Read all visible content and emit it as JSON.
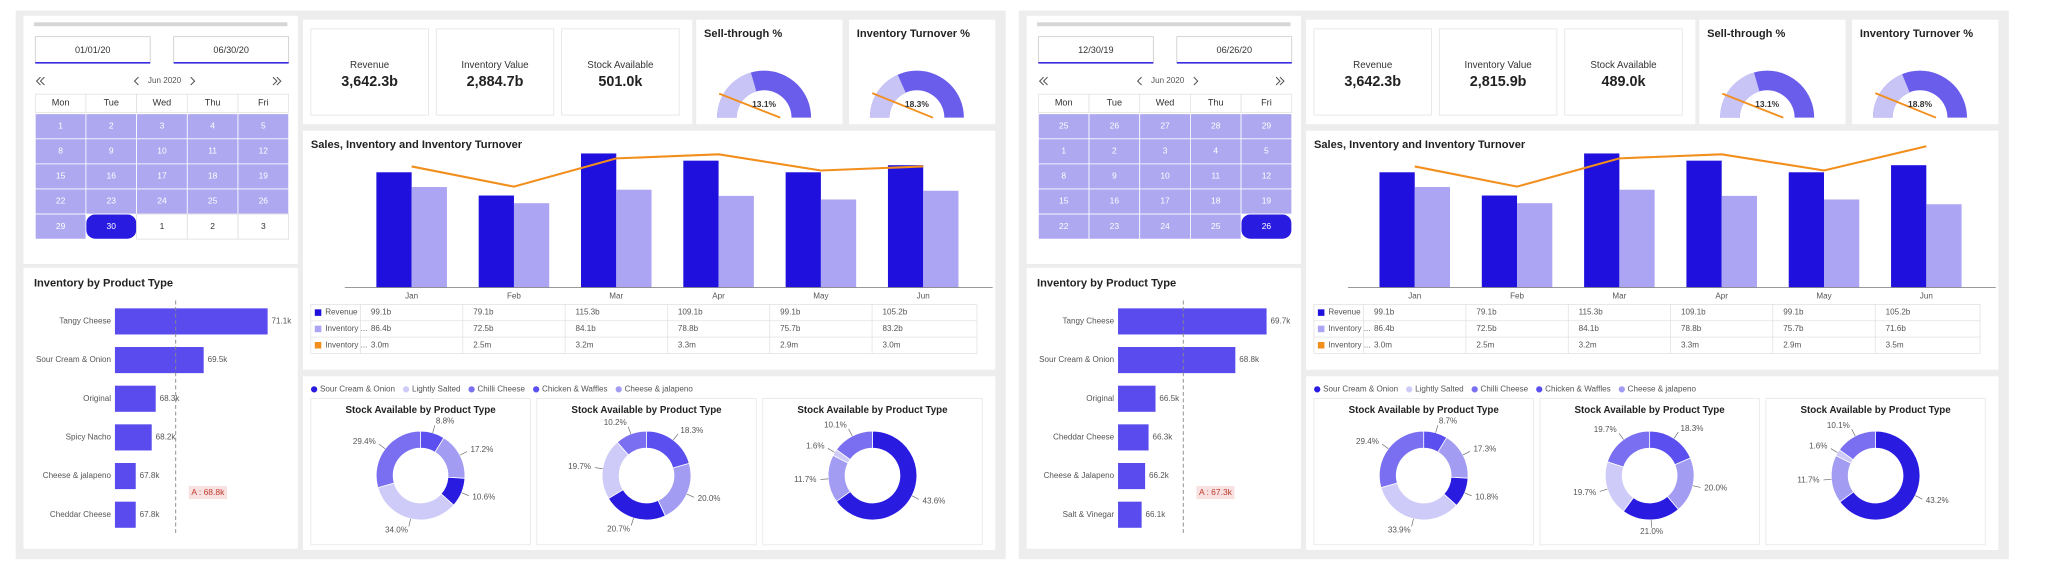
{
  "dashboards": [
    {
      "date_range": [
        "01/01/20",
        "06/30/20"
      ],
      "calendar": {
        "month": "Jun 2020",
        "weekdays": [
          "Mon",
          "Tue",
          "Wed",
          "Thu",
          "Fri"
        ],
        "weeks": [
          [
            1,
            2,
            3,
            4,
            5
          ],
          [
            8,
            9,
            10,
            11,
            12
          ],
          [
            15,
            16,
            17,
            18,
            19
          ],
          [
            22,
            23,
            24,
            25,
            26
          ],
          [
            29,
            30,
            1,
            2,
            3
          ]
        ]
      },
      "kpis": [
        {
          "label": "Revenue",
          "value": "3,642.3b"
        },
        {
          "label": "Inventory Value",
          "value": "2,884.7b"
        },
        {
          "label": "Stock Available",
          "value": "501.0k"
        }
      ],
      "chart_data": [
        {
          "type": "gauge",
          "title": "Sell-through %",
          "value": 13.1,
          "value_label": "13.1%",
          "ylim": [
            0,
            32
          ],
          "target": 5,
          "color": "#c9c4f6",
          "track_color": "#6a5dec",
          "target_color": "#f28e1c"
        },
        {
          "type": "gauge",
          "title": "Inventory Turnover %",
          "value": 18.3,
          "value_label": "18.3%",
          "ylim": [
            0,
            50
          ],
          "target": 8,
          "color": "#c9c4f6",
          "track_color": "#6a5dec",
          "target_color": "#f28e1c"
        },
        {
          "type": "combo",
          "title": "Sales, Inventory and Inventory Turnover",
          "categories": [
            "Jan",
            "Feb",
            "Mar",
            "Apr",
            "May",
            "Jun"
          ],
          "ylim": [
            0,
            118
          ],
          "y2lim": [
            0,
            3.4
          ],
          "series": [
            {
              "name": "Revenue",
              "type": "bar",
              "color": "#1f10dd",
              "values": [
                99.1,
                79.1,
                115.3,
                109.1,
                99.1,
                105.2
              ],
              "value_labels": [
                "99.1b",
                "79.1b",
                "115.3b",
                "109.1b",
                "99.1b",
                "105.2b"
              ]
            },
            {
              "name": "Inventory ...",
              "type": "bar",
              "color": "#aba5f3",
              "values": [
                86.4,
                72.5,
                84.1,
                78.8,
                75.7,
                83.2
              ],
              "value_labels": [
                "86.4b",
                "72.5b",
                "84.1b",
                "78.8b",
                "75.7b",
                "83.2b"
              ]
            },
            {
              "name": "Inventory ...",
              "type": "line",
              "axis": "y2",
              "color": "#f28e1c",
              "values": [
                3.0,
                2.5,
                3.2,
                3.3,
                2.9,
                3.0
              ],
              "value_labels": [
                "3.0m",
                "2.5m",
                "3.2m",
                "3.3m",
                "2.9m",
                "3.0m"
              ]
            }
          ]
        },
        {
          "type": "hbar",
          "title": "Inventory by Product Type",
          "categories": [
            "Tangy Cheese",
            "Sour Cream & Onion",
            "Original",
            "Spicy Nacho",
            "Cheese & jalapeno",
            "Cheddar Cheese"
          ],
          "values": [
            71.1,
            69.5,
            68.3,
            68.2,
            67.8,
            67.8
          ],
          "value_labels": [
            "71.1k",
            "69.5k",
            "68.3k",
            "68.2k",
            "67.8k",
            "67.8k"
          ],
          "color": "#5a4bee",
          "xlim": [
            67.28,
            71.43
          ],
          "average": 68.8,
          "average_label": "A : 68.8k"
        },
        {
          "type": "donuts",
          "legend": [
            {
              "name": "Sour Cream & Onion",
              "color": "#2a1be0"
            },
            {
              "name": "Lightly Salted",
              "color": "#cfcbf8"
            },
            {
              "name": "Chilli Cheese",
              "color": "#7a6ff0"
            },
            {
              "name": "Chicken & Waffles",
              "color": "#5b4ff0"
            },
            {
              "name": "Cheese & jalapeno",
              "color": "#a39cf3"
            }
          ],
          "charts": [
            {
              "title": "Stock Available by Product Type",
              "values": [
                8.8,
                17.2,
                10.6,
                34.0,
                29.4
              ],
              "value_labels": [
                "8.8%",
                "17.2%",
                "10.6%",
                "34.0%",
                "29.4%"
              ],
              "colors": [
                "#5b4ff0",
                "#a39cf3",
                "#2a1be0",
                "#cfcbf8",
                "#7a6ff0"
              ]
            },
            {
              "title": "Stock Available by Product Type",
              "values": [
                18.3,
                20.0,
                20.7,
                19.7,
                10.2
              ],
              "value_labels": [
                "18.3%",
                "20.0%",
                "20.7%",
                "19.7%",
                "10.2%"
              ],
              "colors": [
                "#5b4ff0",
                "#a39cf3",
                "#2a1be0",
                "#cfcbf8",
                "#7a6ff0"
              ]
            },
            {
              "title": "Stock Available by Product Type",
              "values": [
                43.6,
                11.7,
                1.6,
                10.1
              ],
              "value_labels": [
                "43.6%",
                "11.7%",
                "1.6%",
                "10.1%"
              ],
              "colors": [
                "#2a1be0",
                "#a39cf3",
                "#cfcbf8",
                "#7a6ff0"
              ]
            }
          ]
        }
      ]
    },
    {
      "date_range": [
        "12/30/19",
        "06/26/20"
      ],
      "calendar": {
        "month": "Jun 2020",
        "weekdays": [
          "Mon",
          "Tue",
          "Wed",
          "Thu",
          "Fri"
        ],
        "weeks": [
          [
            25,
            26,
            27,
            28,
            29
          ],
          [
            1,
            2,
            3,
            4,
            5
          ],
          [
            8,
            9,
            10,
            11,
            12
          ],
          [
            15,
            16,
            17,
            18,
            19
          ],
          [
            22,
            23,
            24,
            25,
            26
          ]
        ]
      },
      "kpis": [
        {
          "label": "Revenue",
          "value": "3,642.3b"
        },
        {
          "label": "Inventory Value",
          "value": "2,815.9b"
        },
        {
          "label": "Stock Available",
          "value": "489.0k"
        }
      ],
      "chart_data": [
        {
          "type": "gauge",
          "title": "Sell-through %",
          "value": 13.1,
          "value_label": "13.1%",
          "ylim": [
            0,
            32
          ],
          "target": 5,
          "color": "#c9c4f6",
          "track_color": "#6a5dec",
          "target_color": "#f28e1c"
        },
        {
          "type": "gauge",
          "title": "Inventory Turnover %",
          "value": 18.8,
          "value_label": "18.8%",
          "ylim": [
            0,
            50
          ],
          "target": 8,
          "color": "#c9c4f6",
          "track_color": "#6a5dec",
          "target_color": "#f28e1c"
        },
        {
          "type": "combo",
          "title": "Sales, Inventory and Inventory Turnover",
          "categories": [
            "Jan",
            "Feb",
            "Mar",
            "Apr",
            "May",
            "Jun"
          ],
          "ylim": [
            0,
            118
          ],
          "y2lim": [
            0,
            3.4
          ],
          "series": [
            {
              "name": "Revenue",
              "type": "bar",
              "color": "#1f10dd",
              "values": [
                99.1,
                79.1,
                115.3,
                109.1,
                99.1,
                105.2
              ],
              "value_labels": [
                "99.1b",
                "79.1b",
                "115.3b",
                "109.1b",
                "99.1b",
                "105.2b"
              ]
            },
            {
              "name": "Inventory ...",
              "type": "bar",
              "color": "#aba5f3",
              "values": [
                86.4,
                72.5,
                84.1,
                78.8,
                75.7,
                71.6
              ],
              "value_labels": [
                "86.4b",
                "72.5b",
                "84.1b",
                "78.8b",
                "75.7b",
                "71.6b"
              ]
            },
            {
              "name": "Inventory ...",
              "type": "line",
              "axis": "y2",
              "color": "#f28e1c",
              "values": [
                3.0,
                2.5,
                3.2,
                3.3,
                2.9,
                3.5
              ],
              "value_labels": [
                "3.0m",
                "2.5m",
                "3.2m",
                "3.3m",
                "2.9m",
                "3.5m"
              ]
            }
          ]
        },
        {
          "type": "hbar",
          "title": "Inventory by Product Type",
          "categories": [
            "Tangy Cheese",
            "Sour Cream & Onion",
            "Original",
            "Cheddar Cheese",
            "Cheese & Jalapeno",
            "Salt & Vinegar"
          ],
          "values": [
            69.7,
            68.8,
            66.5,
            66.3,
            66.2,
            66.1
          ],
          "value_labels": [
            "69.7k",
            "68.8k",
            "66.5k",
            "66.3k",
            "66.2k",
            "66.1k"
          ],
          "color": "#5a4bee",
          "xlim": [
            65.42,
            70.2
          ],
          "average": 67.3,
          "average_label": "A : 67.3k"
        },
        {
          "type": "donuts",
          "legend": [
            {
              "name": "Sour Cream & Onion",
              "color": "#2a1be0"
            },
            {
              "name": "Lightly Salted",
              "color": "#cfcbf8"
            },
            {
              "name": "Chilli Cheese",
              "color": "#7a6ff0"
            },
            {
              "name": "Chicken & Waffles",
              "color": "#5b4ff0"
            },
            {
              "name": "Cheese & jalapeno",
              "color": "#a39cf3"
            }
          ],
          "charts": [
            {
              "title": "Stock Available by Product Type",
              "values": [
                8.7,
                17.3,
                10.8,
                33.9,
                29.4
              ],
              "value_labels": [
                "8.7%",
                "17.3%",
                "10.8%",
                "33.9%",
                "29.4%"
              ],
              "colors": [
                "#5b4ff0",
                "#a39cf3",
                "#2a1be0",
                "#cfcbf8",
                "#7a6ff0"
              ]
            },
            {
              "title": "Stock Available by Product Type",
              "values": [
                18.3,
                20.0,
                21.0,
                19.7,
                19.7
              ],
              "value_labels": [
                "18.3%",
                "20.0%",
                "21.0%",
                "19.7%",
                "19.7%"
              ],
              "colors": [
                "#5b4ff0",
                "#a39cf3",
                "#2a1be0",
                "#cfcbf8",
                "#7a6ff0"
              ]
            },
            {
              "title": "Stock Available by Product Type",
              "values": [
                43.2,
                11.7,
                1.6,
                10.1
              ],
              "value_labels": [
                "43.2%",
                "11.7%",
                "1.6%",
                "10.1%"
              ],
              "colors": [
                "#2a1be0",
                "#a39cf3",
                "#cfcbf8",
                "#7a6ff0"
              ]
            }
          ]
        }
      ]
    }
  ]
}
